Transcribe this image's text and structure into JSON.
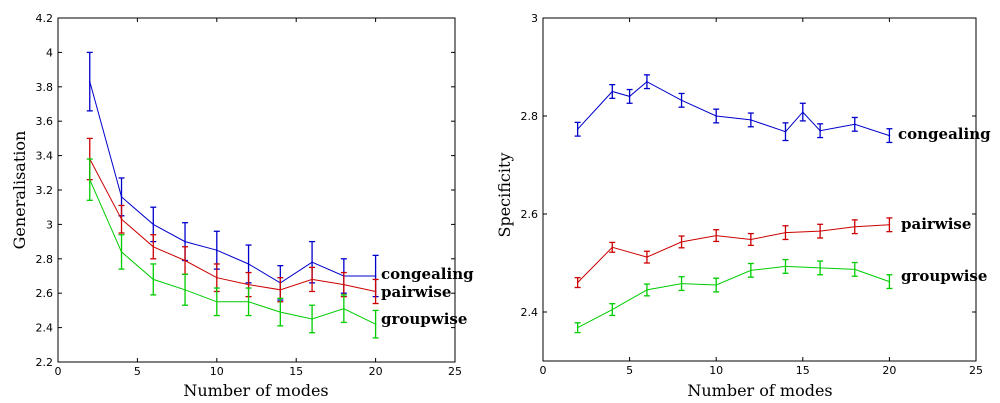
{
  "chart_data": [
    {
      "type": "line",
      "xlabel": "Number of modes",
      "ylabel": "Generalisation",
      "xlim": [
        0,
        25
      ],
      "ylim": [
        2.2,
        4.2
      ],
      "xticks": [
        0,
        5,
        10,
        15,
        20,
        25
      ],
      "yticks": [
        2.2,
        2.4,
        2.6,
        2.8,
        3,
        3.2,
        3.4,
        3.6,
        3.8,
        4,
        4.2
      ],
      "x": [
        2,
        4,
        6,
        8,
        10,
        12,
        14,
        16,
        18,
        20
      ],
      "series": [
        {
          "name": "congealing",
          "color": "#0000cc",
          "values": [
            3.83,
            3.16,
            3.0,
            2.9,
            2.85,
            2.77,
            2.66,
            2.78,
            2.7,
            2.7
          ],
          "errors": [
            0.17,
            0.11,
            0.1,
            0.11,
            0.11,
            0.11,
            0.1,
            0.12,
            0.1,
            0.12
          ]
        },
        {
          "name": "pairwise",
          "color": "#cc0000",
          "values": [
            3.38,
            3.03,
            2.87,
            2.79,
            2.69,
            2.65,
            2.62,
            2.68,
            2.65,
            2.61
          ],
          "errors": [
            0.12,
            0.08,
            0.07,
            0.08,
            0.08,
            0.07,
            0.07,
            0.07,
            0.07,
            0.07
          ]
        },
        {
          "name": "groupwise",
          "color": "#00cc00",
          "values": [
            3.26,
            2.84,
            2.68,
            2.62,
            2.55,
            2.55,
            2.49,
            2.45,
            2.51,
            2.42
          ],
          "errors": [
            0.12,
            0.1,
            0.09,
            0.09,
            0.08,
            0.08,
            0.08,
            0.08,
            0.08,
            0.08
          ]
        }
      ],
      "labels": [
        "congealing",
        "pairwise",
        "groupwise"
      ]
    },
    {
      "type": "line",
      "xlabel": "Number of modes",
      "ylabel": "Specificity",
      "xlim": [
        0,
        25
      ],
      "ylim": [
        2.3,
        3.0
      ],
      "xticks": [
        0,
        5,
        10,
        15,
        20,
        25
      ],
      "yticks": [
        2.4,
        2.6,
        2.8,
        3
      ],
      "x": [
        2,
        4,
        5,
        6,
        8,
        10,
        12,
        14,
        15,
        16,
        18,
        20
      ],
      "series": [
        {
          "name": "congealing",
          "color": "#0000cc",
          "values": [
            2.773,
            2.85,
            2.84,
            2.87,
            2.832,
            2.8,
            2.792,
            2.768,
            2.808,
            2.77,
            2.783,
            2.76
          ],
          "errors": [
            0.014,
            0.014,
            0.014,
            0.014,
            0.014,
            0.014,
            0.014,
            0.018,
            0.018,
            0.014,
            0.014,
            0.014
          ]
        },
        {
          "name": "pairwise",
          "color": "#cc0000",
          "values": [
            2.46,
            2.532,
            null,
            2.512,
            2.543,
            2.556,
            2.548,
            2.562,
            null,
            2.565,
            2.574,
            2.578
          ],
          "errors": [
            0.01,
            0.01,
            null,
            0.012,
            0.012,
            0.012,
            0.012,
            0.014,
            null,
            0.014,
            0.014,
            0.014
          ]
        },
        {
          "name": "groupwise",
          "color": "#00cc00",
          "values": [
            2.368,
            2.405,
            null,
            2.445,
            2.458,
            2.455,
            2.485,
            2.493,
            null,
            2.49,
            2.487,
            2.462
          ],
          "errors": [
            0.01,
            0.012,
            null,
            0.012,
            0.014,
            0.014,
            0.014,
            0.014,
            null,
            0.014,
            0.014,
            0.014
          ]
        }
      ],
      "labels": [
        "congealing",
        "pairwise",
        "groupwise"
      ]
    }
  ]
}
